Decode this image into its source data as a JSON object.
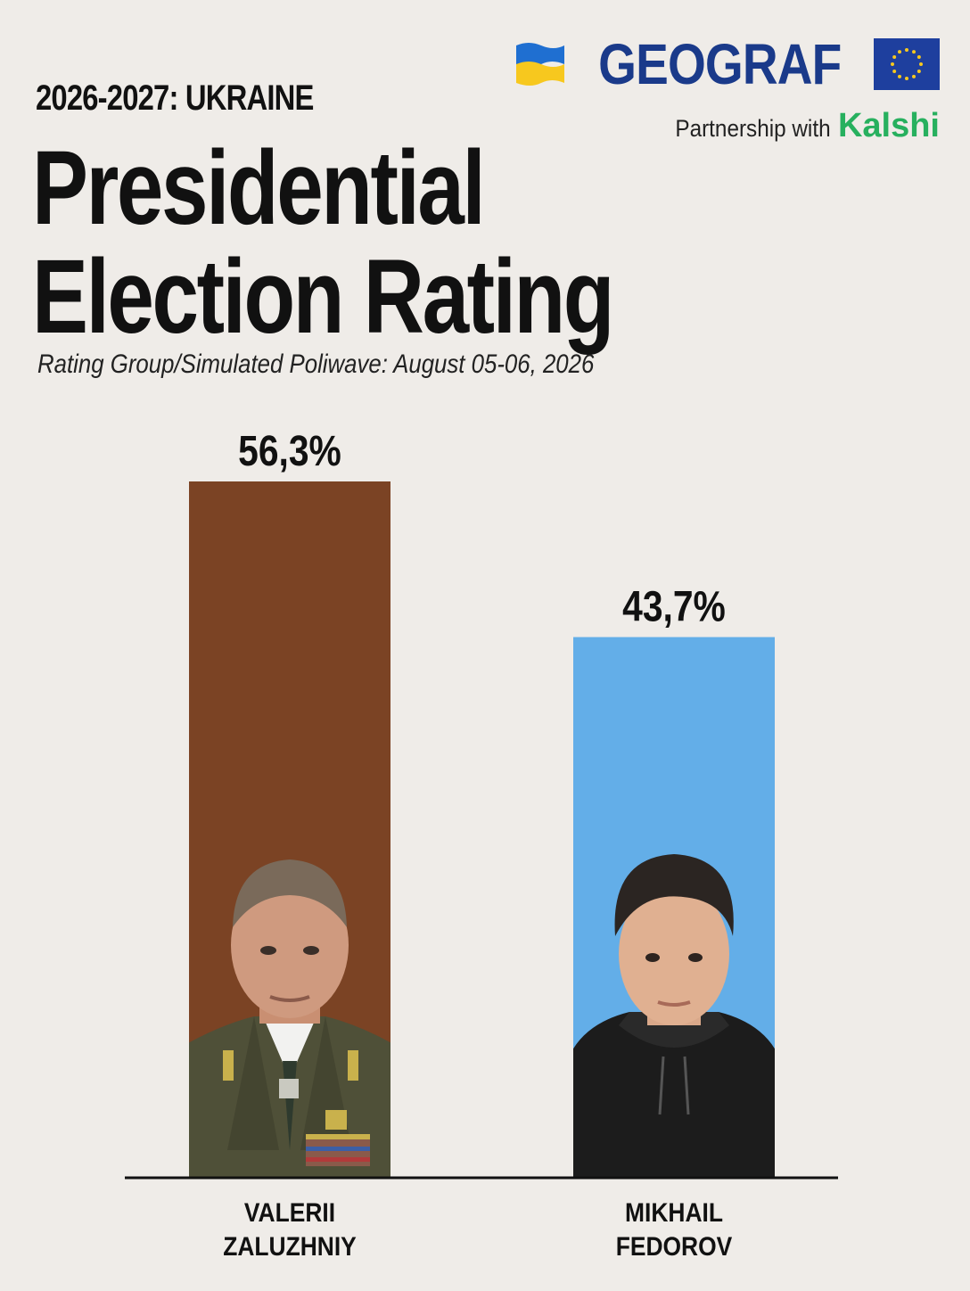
{
  "header": {
    "kicker": "2026-2027: UKRAINE",
    "title_line1": "Presidential",
    "title_line2": "Election Rating",
    "subtitle": "Rating Group/Simulated Poliwave: August 05-06, 2026"
  },
  "brand": {
    "name": "GEOGRAF",
    "partnership_text": "Partnership with",
    "partner_name": "Kalshi",
    "left_flag": "ukraine-flag-icon",
    "right_flag": "eu-flag-icon"
  },
  "colors": {
    "background": "#efece8",
    "zaluzhniy": "#7b4324",
    "fedorov": "#63aee8",
    "brand": "#1a3a8a",
    "kalshi": "#27b05e"
  },
  "chart_data": {
    "type": "bar",
    "categories": [
      "VALERII ZALUZHNIY",
      "MIKHAIL FEDOROV"
    ],
    "label_lines": [
      [
        "VALERII",
        "ZALUZHNIY"
      ],
      [
        "MIKHAIL",
        "FEDOROV"
      ]
    ],
    "values": [
      56.3,
      43.7
    ],
    "value_labels": [
      "56,3%",
      "43,7%"
    ],
    "colors": [
      "#7b4324",
      "#63aee8"
    ],
    "ylim": [
      0,
      56.3
    ],
    "unit": "%",
    "grid": false,
    "legend": "none",
    "images": [
      "military-officer-portrait",
      "man-in-black-hoodie-portrait"
    ]
  }
}
